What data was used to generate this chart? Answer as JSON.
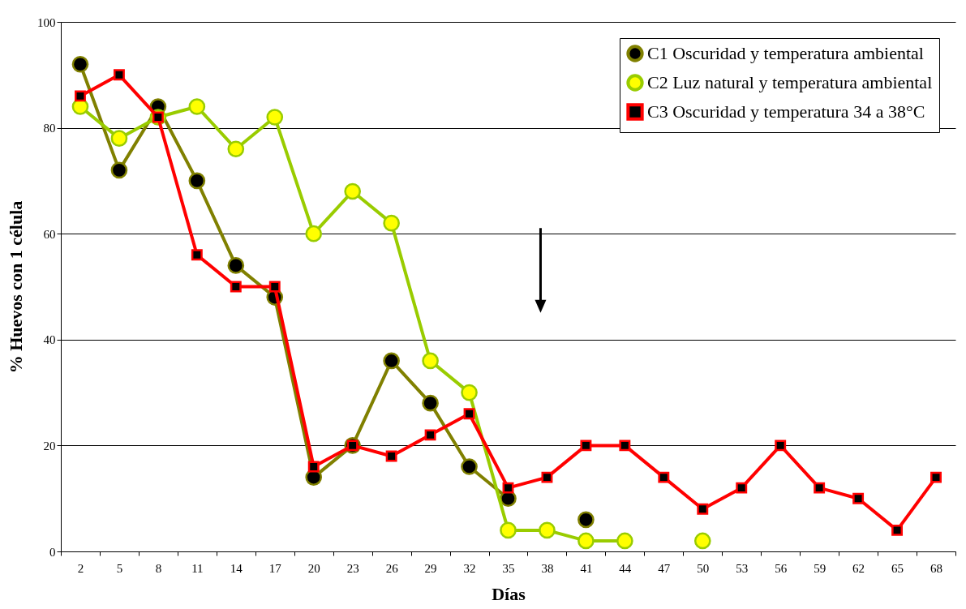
{
  "chart_data": {
    "type": "line",
    "xlabel": "Días",
    "ylabel": "% Huevos con 1 célula",
    "categories": [
      "2",
      "5",
      "8",
      "11",
      "14",
      "17",
      "20",
      "23",
      "26",
      "29",
      "32",
      "35",
      "38",
      "41",
      "44",
      "47",
      "50",
      "53",
      "56",
      "59",
      "62",
      "65",
      "68"
    ],
    "series": [
      {
        "name": "C1 Oscuridad y temperatura ambiental",
        "color": "#808000",
        "marker": "circle",
        "values": [
          92,
          72,
          84,
          70,
          54,
          48,
          14,
          20,
          36,
          28,
          16,
          10,
          null,
          6,
          null,
          null,
          null,
          null,
          null,
          null,
          null,
          null,
          null
        ]
      },
      {
        "name": "C2 Luz natural y temperatura ambiental",
        "color": "#99cc00",
        "marker": "circle",
        "values": [
          84,
          78,
          82,
          84,
          76,
          82,
          60,
          68,
          62,
          36,
          30,
          4,
          4,
          2,
          2,
          null,
          2,
          null,
          null,
          null,
          null,
          null,
          null
        ]
      },
      {
        "name": "C3 Oscuridad y temperatura 34 a 38°C",
        "color": "#ff0000",
        "marker": "square",
        "values": [
          86,
          90,
          82,
          56,
          50,
          50,
          16,
          20,
          18,
          22,
          26,
          12,
          14,
          20,
          20,
          14,
          8,
          12,
          20,
          12,
          10,
          4,
          14
        ]
      }
    ],
    "ylim": [
      0,
      100
    ],
    "yticks": [
      0,
      20,
      40,
      60,
      80,
      100
    ],
    "grid": "y",
    "legend": "top right"
  }
}
